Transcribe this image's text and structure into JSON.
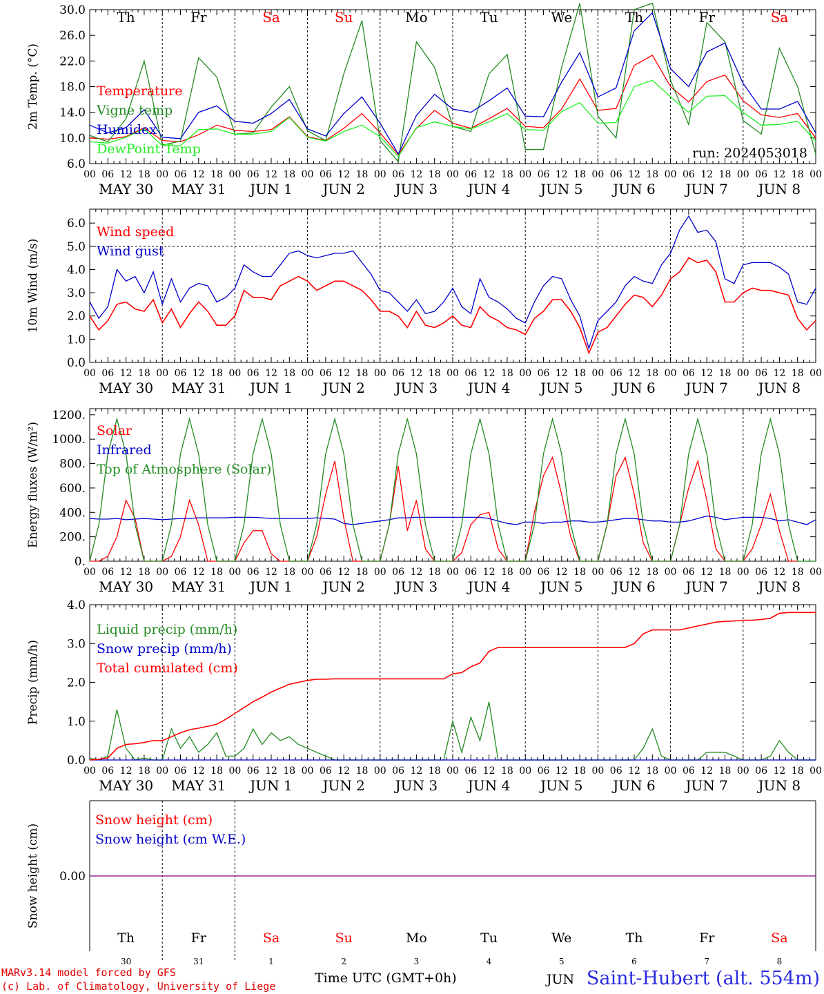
{
  "days": [
    {
      "abbr": "Th",
      "weekend": false,
      "month": "MAY",
      "date": "30"
    },
    {
      "abbr": "Fr",
      "weekend": false,
      "month": "MAY",
      "date": "31"
    },
    {
      "abbr": "Sa",
      "weekend": true,
      "month": "JUN",
      "date": "1"
    },
    {
      "abbr": "Su",
      "weekend": true,
      "month": "JUN",
      "date": "2"
    },
    {
      "abbr": "Mo",
      "weekend": false,
      "month": "JUN",
      "date": "3"
    },
    {
      "abbr": "Tu",
      "weekend": false,
      "month": "JUN",
      "date": "4"
    },
    {
      "abbr": "We",
      "weekend": false,
      "month": "JUN",
      "date": "5"
    },
    {
      "abbr": "Th",
      "weekend": false,
      "month": "JUN",
      "date": "6"
    },
    {
      "abbr": "Fr",
      "weekend": false,
      "month": "JUN",
      "date": "7"
    },
    {
      "abbr": "Sa",
      "weekend": true,
      "month": "JUN",
      "date": "8"
    }
  ],
  "hour_ticks": [
    "00",
    "06",
    "12",
    "18"
  ],
  "final_tick": "00",
  "colors": {
    "red": "#ff0000",
    "dark_green": "#228b22",
    "blue": "#0000cc",
    "light_green": "#22ee22",
    "weekend": "#ff0000",
    "purple": "#800080"
  },
  "credits": [
    "MARv3.14 model forced by GFS",
    "(c) Lab. of Climatology, University of Liege"
  ],
  "xaxis_title": "Time UTC (GMT+0h)",
  "station": "Saint-Hubert (alt. 554m)",
  "month_partial": "JUN",
  "chart_data": [
    {
      "type": "line",
      "ylabel": "2m Temp. (°C)",
      "ylim": [
        6,
        30
      ],
      "yticks": [
        "6.0",
        "10.0",
        "14.0",
        "18.0",
        "22.0",
        "26.0",
        "30.0"
      ],
      "annotation": "run: 2024053018",
      "hours_per_point": 6,
      "series": [
        {
          "name": "Temperature",
          "color": "#ff0000",
          "values": [
            10,
            9.8,
            10.2,
            11.6,
            9.6,
            9.4,
            10.5,
            12,
            11.2,
            11,
            11.3,
            13.3,
            10.2,
            9.6,
            11.5,
            13.8,
            10.8,
            7.4,
            11.5,
            14.3,
            12.3,
            11.5,
            13,
            14.6,
            11.8,
            11.6,
            14.5,
            19.2,
            14.3,
            14.6,
            21.3,
            22.9,
            18,
            15.6,
            18.8,
            19.8,
            15.8,
            13.6,
            13.2,
            13.8,
            10
          ]
        },
        {
          "name": "Vigne temp",
          "color": "#228b22",
          "values": [
            10.4,
            9.4,
            13,
            22,
            8.9,
            9.5,
            22.5,
            19.5,
            10.6,
            10.8,
            14.8,
            18,
            11.1,
            9.6,
            20,
            28.3,
            9.6,
            6.3,
            25,
            21,
            11.8,
            11,
            20,
            23,
            8.2,
            8.2,
            21,
            31,
            13.4,
            10,
            30,
            31,
            19,
            12.1,
            28,
            25,
            12.7,
            10.6,
            24,
            18,
            7.5
          ]
        },
        {
          "name": "Humidex",
          "color": "#0000cc",
          "values": [
            12,
            10.8,
            11.6,
            14.4,
            10.1,
            9.9,
            14,
            15,
            12.6,
            12.3,
            13.8,
            16,
            11.4,
            10.3,
            13.8,
            16.4,
            12.3,
            7.5,
            13.5,
            16.8,
            14.5,
            14,
            15.8,
            17.8,
            13.4,
            13.3,
            18.7,
            23.3,
            16.4,
            17.8,
            26.7,
            29.5,
            20.8,
            18,
            23.4,
            24.8,
            18.5,
            14.5,
            14.5,
            15.7,
            10.8
          ]
        },
        {
          "name": "DewPoint Temp",
          "color": "#22ee22",
          "values": [
            9.4,
            9.2,
            10.1,
            11.4,
            8.8,
            8.8,
            11.3,
            11.4,
            10.6,
            10.6,
            11,
            13.2,
            10.1,
            9.5,
            11,
            12,
            10.2,
            7.1,
            11.6,
            12.5,
            11.8,
            11.4,
            12.5,
            13.8,
            11.3,
            11.2,
            14.1,
            15.5,
            12.3,
            12.4,
            18,
            19,
            16.4,
            14,
            16.5,
            16.6,
            14,
            12,
            12.1,
            12.6,
            9.5
          ]
        }
      ]
    },
    {
      "type": "line",
      "ylabel": "10m Wind (m/s)",
      "ylim": [
        0,
        6.6
      ],
      "yticks": [
        "0.0",
        "1.0",
        "2.0",
        "3.0",
        "4.0",
        "5.0",
        "6.0"
      ],
      "reference_line": 5.0,
      "hours_per_point": 3,
      "series": [
        {
          "name": "Wind speed",
          "color": "#ff0000",
          "values": [
            2,
            1.4,
            1.8,
            2.5,
            2.6,
            2.3,
            2.2,
            2.7,
            1.7,
            2.3,
            1.5,
            2.1,
            2.6,
            2.2,
            1.6,
            1.6,
            2,
            3.1,
            2.8,
            2.8,
            2.7,
            3.3,
            3.5,
            3.7,
            3.5,
            3.1,
            3.3,
            3.5,
            3.5,
            3.3,
            3.1,
            2.7,
            2.2,
            2.2,
            2,
            1.5,
            2.2,
            1.6,
            1.5,
            1.7,
            2,
            1.6,
            1.5,
            2.4,
            2,
            1.8,
            1.5,
            1.4,
            1.2,
            1.9,
            2.2,
            2.7,
            2.7,
            2.2,
            1.5,
            0.4,
            1.3,
            1.5,
            2,
            2.5,
            2.9,
            2.8,
            2.4,
            2.9,
            3.6,
            3.9,
            4.5,
            4.3,
            4.4,
            3.9,
            2.6,
            2.6,
            3,
            3.2,
            3.1,
            3.1,
            3,
            2.9,
            1.9,
            1.4,
            1.8
          ]
        },
        {
          "name": "Wind gust",
          "color": "#0000cc",
          "values": [
            2.6,
            1.9,
            2.4,
            4,
            3.5,
            3.7,
            3,
            3.9,
            2.5,
            3.6,
            2.6,
            3.2,
            3.4,
            3.3,
            2.6,
            2.8,
            3.2,
            4.2,
            3.9,
            3.7,
            3.7,
            4.2,
            4.7,
            4.8,
            4.6,
            4.5,
            4.6,
            4.7,
            4.7,
            4.8,
            4.3,
            3.8,
            3.1,
            3,
            2.6,
            2.2,
            2.7,
            2.1,
            2.2,
            2.6,
            3.2,
            2.4,
            2.1,
            3.6,
            2.8,
            2.6,
            2.3,
            1.9,
            1.7,
            2.6,
            3.3,
            3.7,
            3.6,
            2.7,
            2,
            0.6,
            1.8,
            2.2,
            2.6,
            3.3,
            3.7,
            3.5,
            3.4,
            4.2,
            4.7,
            5.7,
            6.3,
            5.6,
            5.7,
            5.2,
            3.6,
            3.4,
            4.2,
            4.3,
            4.3,
            4.3,
            4.1,
            3.8,
            2.6,
            2.5,
            3.2
          ]
        }
      ]
    },
    {
      "type": "line",
      "ylabel": "Energy fluxes (W/m²)",
      "ylim": [
        0,
        1250
      ],
      "yticks": [
        "0.",
        "200.",
        "400.",
        "600.",
        "800.",
        "1000.",
        "1200."
      ],
      "hours_per_point": 3,
      "series": [
        {
          "name": "Solar",
          "color": "#ff0000",
          "values": [
            0,
            0,
            40,
            200,
            500,
            350,
            0,
            0,
            0,
            40,
            200,
            500,
            300,
            0,
            0,
            0,
            0,
            150,
            250,
            250,
            60,
            0,
            0,
            0,
            0,
            200,
            550,
            820,
            350,
            0,
            0,
            0,
            0,
            300,
            780,
            250,
            500,
            100,
            0,
            0,
            0,
            70,
            300,
            380,
            400,
            100,
            0,
            0,
            0,
            400,
            700,
            850,
            550,
            200,
            0,
            0,
            0,
            300,
            700,
            850,
            550,
            150,
            0,
            0,
            0,
            300,
            600,
            820,
            500,
            100,
            0,
            0,
            0,
            100,
            300,
            550,
            250,
            0,
            0
          ]
        },
        {
          "name": "Infrared",
          "color": "#0000cc",
          "values": [
            350,
            345,
            345,
            350,
            340,
            345,
            350,
            345,
            340,
            345,
            350,
            350,
            355,
            355,
            355,
            355,
            360,
            360,
            360,
            355,
            350,
            350,
            350,
            350,
            350,
            355,
            350,
            345,
            310,
            300,
            310,
            320,
            330,
            340,
            355,
            355,
            360,
            360,
            360,
            360,
            360,
            360,
            360,
            360,
            350,
            330,
            310,
            300,
            320,
            320,
            310,
            320,
            320,
            330,
            330,
            320,
            320,
            330,
            340,
            350,
            350,
            340,
            330,
            330,
            320,
            320,
            330,
            350,
            370,
            360,
            340,
            350,
            360,
            360,
            360,
            350,
            330,
            340,
            320,
            300,
            340
          ]
        },
        {
          "name": "Top of Atmosphere (Solar)",
          "color": "#228b22",
          "values": [
            0,
            300,
            880,
            1165,
            880,
            300,
            0,
            0,
            0,
            300,
            880,
            1165,
            880,
            300,
            0,
            0,
            0,
            300,
            880,
            1165,
            880,
            300,
            0,
            0,
            0,
            300,
            880,
            1165,
            880,
            300,
            0,
            0,
            0,
            300,
            880,
            1165,
            880,
            300,
            0,
            0,
            0,
            300,
            880,
            1165,
            880,
            300,
            0,
            0,
            0,
            300,
            880,
            1165,
            880,
            300,
            0,
            0,
            0,
            300,
            880,
            1165,
            880,
            300,
            0,
            0,
            0,
            300,
            880,
            1165,
            880,
            300,
            0,
            0,
            0,
            300,
            880,
            1165,
            880,
            300,
            0,
            0,
            0
          ]
        }
      ]
    },
    {
      "type": "line",
      "ylabel": "Precip (mm/h)",
      "ylim": [
        0,
        4
      ],
      "yticks": [
        "0.0",
        "1.0",
        "2.0",
        "3.0",
        "4.0"
      ],
      "hours_per_point": 3,
      "series": [
        {
          "name": "Liquid precip (mm/h)",
          "color": "#228b22",
          "values": [
            0.05,
            0,
            0.1,
            1.3,
            0.3,
            0,
            0.05,
            0,
            0,
            0.8,
            0.3,
            0.6,
            0.2,
            0.4,
            0.7,
            0.1,
            0.1,
            0.3,
            0.8,
            0.4,
            0.7,
            0.5,
            0.6,
            0.4,
            0.3,
            0.2,
            0.1,
            0,
            0,
            0,
            0,
            0,
            0,
            0,
            0,
            0,
            0,
            0,
            0,
            0,
            1,
            0.2,
            1.1,
            0.5,
            1.5,
            0,
            0,
            0,
            0,
            0,
            0,
            0,
            0,
            0,
            0,
            0,
            0,
            0,
            0,
            0,
            0,
            0.3,
            0.8,
            0.1,
            0,
            0,
            0,
            0,
            0.2,
            0.2,
            0.2,
            0.1,
            0,
            0,
            0,
            0.1,
            0.5,
            0.2,
            0,
            0,
            0
          ]
        },
        {
          "name": "Snow precip (mm/h)",
          "color": "#0000cc",
          "values": [
            0,
            0,
            0,
            0,
            0,
            0,
            0,
            0,
            0,
            0,
            0,
            0,
            0,
            0,
            0,
            0,
            0,
            0,
            0,
            0,
            0,
            0,
            0,
            0,
            0,
            0,
            0,
            0,
            0,
            0,
            0,
            0,
            0,
            0,
            0,
            0,
            0,
            0,
            0,
            0,
            0,
            0,
            0,
            0,
            0,
            0,
            0,
            0,
            0,
            0,
            0,
            0,
            0,
            0,
            0,
            0,
            0,
            0,
            0,
            0,
            0,
            0,
            0,
            0,
            0,
            0,
            0,
            0,
            0,
            0,
            0,
            0,
            0,
            0,
            0,
            0,
            0,
            0,
            0,
            0,
            0
          ]
        },
        {
          "name": "Total cumulated (cm)",
          "color": "#ff0000",
          "values": [
            0,
            0.02,
            0.05,
            0.3,
            0.4,
            0.42,
            0.45,
            0.5,
            0.5,
            0.6,
            0.7,
            0.78,
            0.82,
            0.87,
            0.92,
            1.05,
            1.2,
            1.35,
            1.5,
            1.62,
            1.75,
            1.85,
            1.95,
            2,
            2.05,
            2.08,
            2.08,
            2.09,
            2.09,
            2.09,
            2.09,
            2.09,
            2.09,
            2.09,
            2.09,
            2.09,
            2.09,
            2.09,
            2.09,
            2.09,
            2.22,
            2.25,
            2.4,
            2.5,
            2.8,
            2.9,
            2.9,
            2.9,
            2.9,
            2.9,
            2.9,
            2.9,
            2.9,
            2.9,
            2.9,
            2.9,
            2.9,
            2.9,
            2.9,
            2.9,
            3,
            3.25,
            3.35,
            3.35,
            3.35,
            3.35,
            3.4,
            3.45,
            3.5,
            3.55,
            3.57,
            3.58,
            3.6,
            3.6,
            3.62,
            3.65,
            3.78,
            3.8,
            3.8,
            3.8,
            3.8
          ]
        }
      ]
    },
    {
      "type": "line",
      "ylabel": "Snow height (cm)",
      "ylim": [
        -1,
        1
      ],
      "yticks": [
        "0.00"
      ],
      "series": [
        {
          "name": "Snow height (cm)",
          "color": "#ff0000",
          "values": [
            0,
            0
          ]
        },
        {
          "name": "Snow height (cm W.E.)",
          "color": "#0000cc",
          "values": [
            0,
            0
          ]
        }
      ]
    }
  ]
}
